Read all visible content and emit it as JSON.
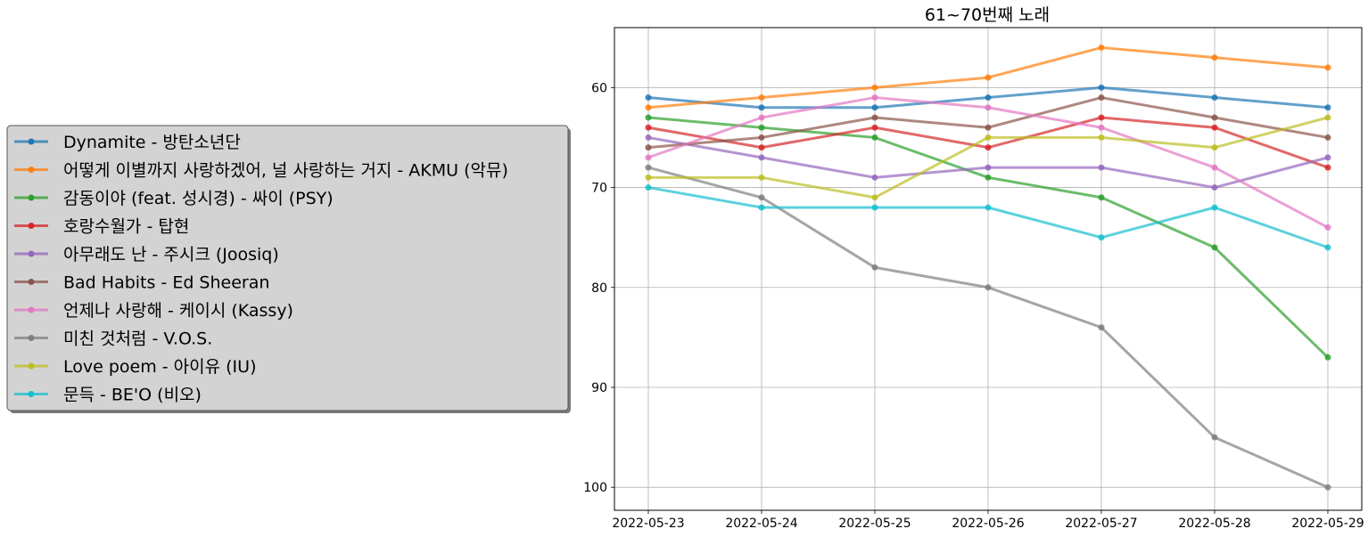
{
  "chart_data": {
    "type": "line",
    "title": "61~70번째 노래",
    "xlabel": "",
    "ylabel": "",
    "y_inverted": true,
    "ylim": [
      102.3,
      54.0
    ],
    "yticks": [
      60,
      70,
      80,
      90,
      100
    ],
    "grid": true,
    "legend_placement": "left",
    "x": [
      "2022-05-23",
      "2022-05-24",
      "2022-05-25",
      "2022-05-26",
      "2022-05-27",
      "2022-05-28",
      "2022-05-29"
    ],
    "series": [
      {
        "name": "Dynamite - 방탄소년단",
        "color": "#1f77b4",
        "values": [
          61,
          62,
          62,
          61,
          60,
          61,
          62
        ]
      },
      {
        "name": "어떻게 이별까지 사랑하겠어, 널 사랑하는 거지 - AKMU (악뮤)",
        "color": "#ff7f0e",
        "values": [
          62,
          61,
          60,
          59,
          56,
          57,
          58
        ]
      },
      {
        "name": "감동이야 (feat. 성시경) - 싸이 (PSY)",
        "color": "#2ca02c",
        "values": [
          63,
          64,
          65,
          69,
          71,
          76,
          87
        ]
      },
      {
        "name": "호랑수월가 - 탑현",
        "color": "#d62728",
        "values": [
          64,
          66,
          64,
          66,
          63,
          64,
          68
        ]
      },
      {
        "name": "아무래도 난 - 주시크 (Joosiq)",
        "color": "#9467bd",
        "values": [
          65,
          67,
          69,
          68,
          68,
          70,
          67
        ]
      },
      {
        "name": "Bad Habits - Ed Sheeran",
        "color": "#8c564b",
        "values": [
          66,
          65,
          63,
          64,
          61,
          63,
          65
        ]
      },
      {
        "name": "언제나 사랑해 - 케이시 (Kassy)",
        "color": "#e377c2",
        "values": [
          67,
          63,
          61,
          62,
          64,
          68,
          74
        ]
      },
      {
        "name": "미친 것처럼 - V.O.S.",
        "color": "#7f7f7f",
        "values": [
          68,
          71,
          78,
          80,
          84,
          95,
          100
        ]
      },
      {
        "name": "Love poem - 아이유 (IU)",
        "color": "#bcbd22",
        "values": [
          69,
          69,
          71,
          65,
          65,
          66,
          63
        ]
      },
      {
        "name": "문득 - BE'O (비오)",
        "color": "#17becf",
        "values": [
          70,
          72,
          72,
          72,
          75,
          72,
          76
        ]
      }
    ]
  }
}
